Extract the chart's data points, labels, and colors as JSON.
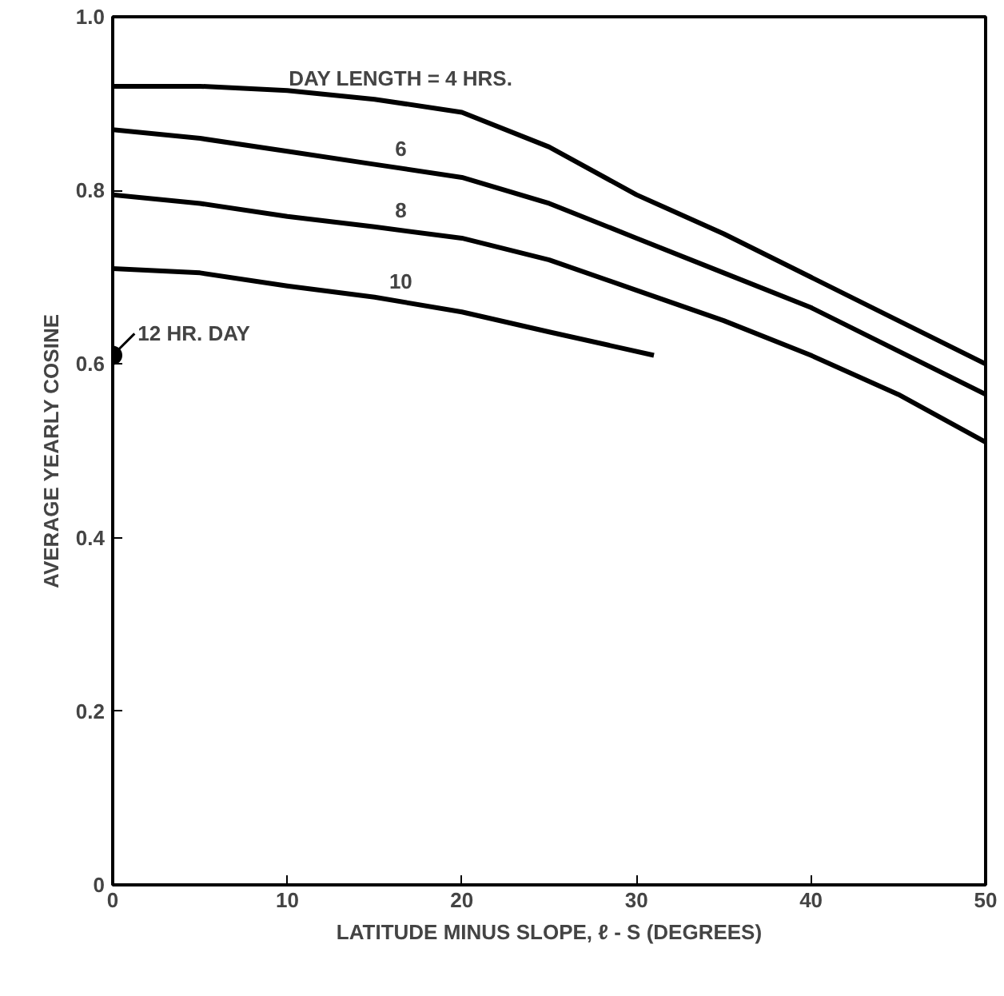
{
  "chart_data": {
    "type": "line",
    "xlabel": "LATITUDE MINUS SLOPE, ℓ - S (DEGREES)",
    "ylabel": "AVERAGE YEARLY COSINE",
    "xlim": [
      0,
      50
    ],
    "ylim": [
      0,
      1.0
    ],
    "xticks": [
      0,
      10,
      20,
      30,
      40,
      50
    ],
    "yticks": [
      0,
      0.2,
      0.4,
      0.6,
      0.8,
      {
        "value": 1.0,
        "label": "1.0"
      }
    ],
    "color": "#000000",
    "grid": false,
    "marker": "none",
    "line_style": "solid",
    "series": [
      {
        "name": "DAY LENGTH = 4 HRS.",
        "x": [
          0,
          5,
          10,
          15,
          20,
          25,
          30,
          35,
          40,
          45,
          50
        ],
        "values": [
          0.92,
          0.92,
          0.915,
          0.905,
          0.89,
          0.85,
          0.795,
          0.75,
          0.7,
          0.65,
          0.6
        ]
      },
      {
        "name": "6",
        "x": [
          0,
          5,
          10,
          15,
          20,
          25,
          30,
          35,
          40,
          45,
          50
        ],
        "values": [
          0.87,
          0.86,
          0.845,
          0.83,
          0.815,
          0.785,
          0.745,
          0.705,
          0.665,
          0.615,
          0.565
        ]
      },
      {
        "name": "8",
        "x": [
          0,
          5,
          10,
          15,
          20,
          25,
          30,
          35,
          40,
          45,
          50
        ],
        "values": [
          0.795,
          0.785,
          0.77,
          0.758,
          0.745,
          0.72,
          0.685,
          0.65,
          0.61,
          0.565,
          0.51
        ]
      },
      {
        "name": "10",
        "x": [
          0,
          5,
          10,
          15,
          20,
          25,
          31
        ],
        "values": [
          0.71,
          0.705,
          0.69,
          0.677,
          0.66,
          0.637,
          0.61
        ]
      },
      {
        "name": "12 HR. DAY",
        "type": "scatter",
        "marker": "circle",
        "x": [
          0
        ],
        "values": [
          0.61
        ]
      }
    ]
  }
}
